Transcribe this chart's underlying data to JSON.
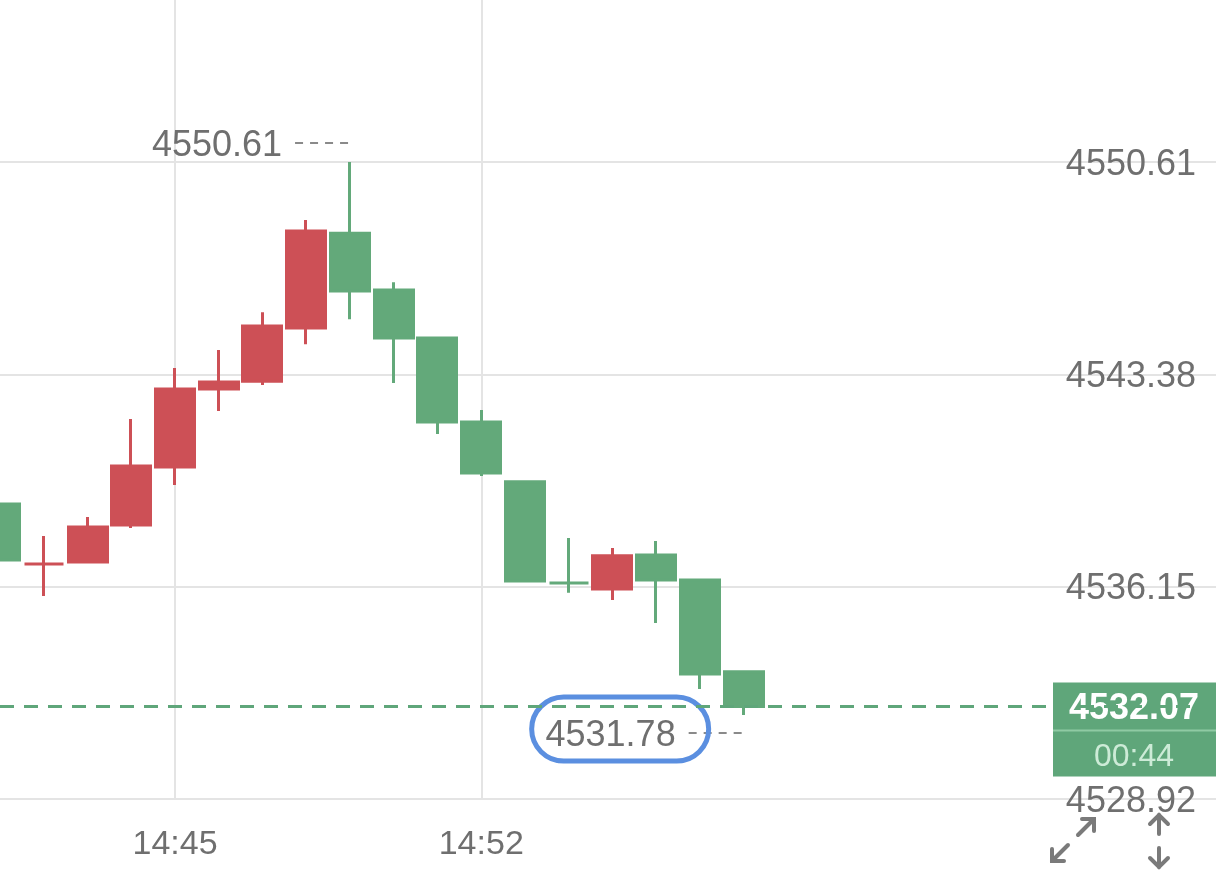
{
  "chart_data": {
    "type": "candlestick",
    "x": [
      14.6833,
      14.7,
      14.7167,
      14.7333,
      14.75,
      14.7667,
      14.7833,
      14.8,
      14.8167,
      14.8333,
      14.85,
      14.8667,
      14.8833,
      14.9,
      14.9167,
      14.9333,
      14.95,
      14.9667
    ],
    "ohlc": [
      [
        4538.97,
        4538.97,
        4537.06,
        4537.06
      ],
      [
        4536.92,
        4537.88,
        4535.83,
        4536.92
      ],
      [
        4536.99,
        4538.52,
        4536.99,
        4538.18
      ],
      [
        4538.25,
        4541.86,
        4538.15,
        4540.26
      ],
      [
        4540.23,
        4543.6,
        4539.61,
        4542.88
      ],
      [
        4542.88,
        4544.21,
        4542.13,
        4543.12
      ],
      [
        4543.15,
        4545.5,
        4543.02,
        4545.03
      ],
      [
        4544.96,
        4548.64,
        4544.41,
        4548.26
      ],
      [
        4548.19,
        4550.61,
        4545.26,
        4546.22
      ],
      [
        4546.25,
        4546.52,
        4543.09,
        4544.62
      ],
      [
        4544.62,
        4544.62,
        4541.35,
        4541.76
      ],
      [
        4541.76,
        4542.17,
        4539.92,
        4540.02
      ],
      [
        4539.72,
        4539.72,
        4536.34,
        4536.34
      ],
      [
        4536.28,
        4537.81,
        4535.94,
        4536.28
      ],
      [
        4536.07,
        4537.47,
        4535.7,
        4537.2
      ],
      [
        4537.23,
        4537.71,
        4534.91,
        4536.38
      ],
      [
        4536.38,
        4536.38,
        4532.67,
        4533.18
      ],
      [
        4533.25,
        4533.25,
        4531.78,
        4532.07
      ]
    ],
    "colors": [
      "#63a97a",
      "#cd5056",
      "#cd5056",
      "#cd5056",
      "#cd5056",
      "#cd5056",
      "#cd5056",
      "#cd5056",
      "#63a97a",
      "#63a97a",
      "#63a97a",
      "#63a97a",
      "#63a97a",
      "#63a97a",
      "#cd5056",
      "#63a97a",
      "#63a97a",
      "#63a97a"
    ],
    "xlim": [
      14.6833,
      15.1467
    ],
    "xticks": [
      {
        "value": 14.75,
        "label": "14:45"
      },
      {
        "value": 14.8667,
        "label": "14:52"
      }
    ],
    "ylim": [
      4528.92,
      4556.13
    ],
    "yticks": [
      4528.92,
      4536.15,
      4543.38,
      4550.61
    ],
    "grid": true,
    "ref_lines": [
      {
        "axis": "y",
        "value": 4532.07,
        "label": "4532.07",
        "color": "#5fa67a",
        "line_style": "dashed"
      }
    ],
    "annotations": [
      {
        "text": "4550.61",
        "x": 14.8167,
        "y": 4550.61
      },
      {
        "text": "4531.78",
        "x": 14.9667,
        "y": 4531.78
      },
      "00:44"
    ]
  }
}
